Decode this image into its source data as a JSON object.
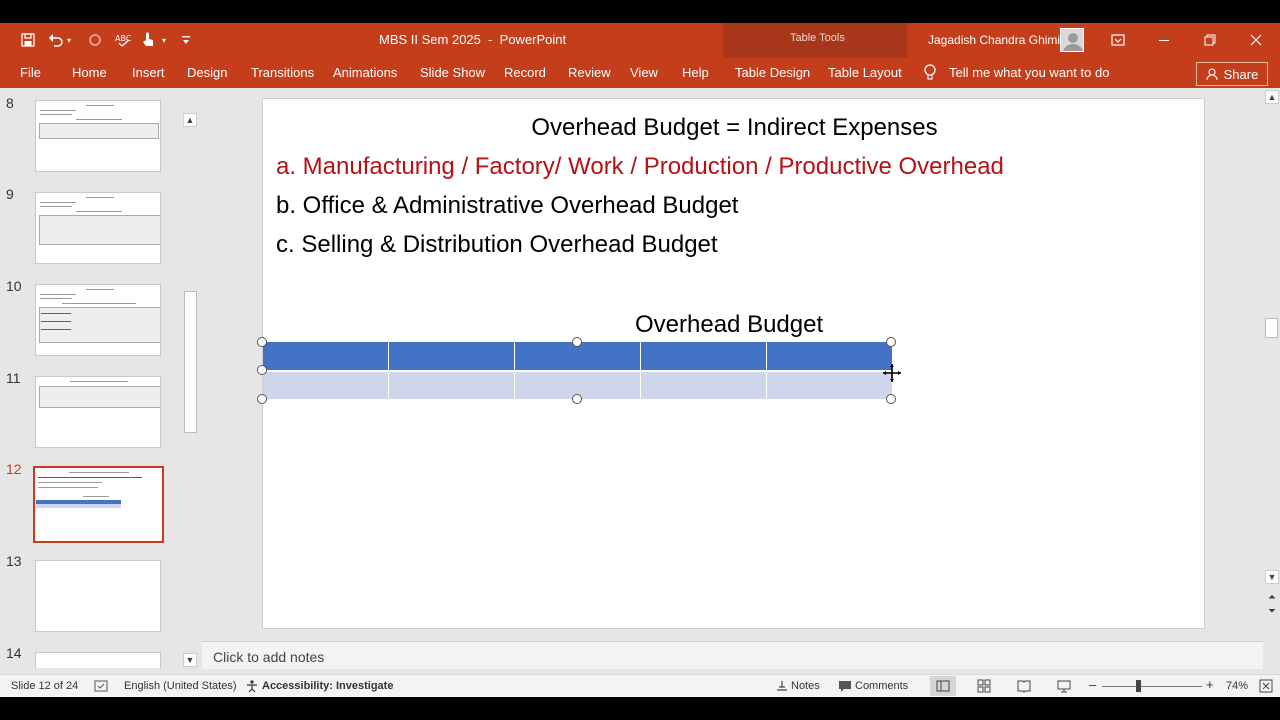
{
  "window": {
    "doc_title": "MBS II Sem 2025  -  PowerPoint",
    "context_tab_group": "Table Tools",
    "user_name": "Jagadish Chandra Ghimire"
  },
  "ribbon": {
    "tabs": [
      "File",
      "Home",
      "Insert",
      "Design",
      "Transitions",
      "Animations",
      "Slide Show",
      "Record",
      "Review",
      "View",
      "Help",
      "Table Design",
      "Table Layout"
    ],
    "tell_me": "Tell me what you want to do",
    "share": "Share"
  },
  "thumbnails": {
    "numbers": [
      "8",
      "9",
      "10",
      "11",
      "12",
      "13",
      "14"
    ],
    "selected": "12"
  },
  "slide": {
    "heading": "Overhead Budget = Indirect Expenses",
    "bullets": [
      "a. Manufacturing / Factory/ Work / Production / Productive Overhead",
      "b. Office & Administrative Overhead Budget",
      "c. Selling & Distribution Overhead Budget"
    ],
    "table_title": "Overhead Budget",
    "table": {
      "columns": 5,
      "rows": 2,
      "header_color": "#4472c4",
      "body_color": "#cfd5ea"
    }
  },
  "notes": {
    "placeholder": "Click to add notes"
  },
  "status": {
    "slide_info": "Slide 12 of 24",
    "language": "English (United States)",
    "accessibility": "Accessibility: Investigate",
    "notes_btn": "Notes",
    "comments_btn": "Comments",
    "zoom": "74%"
  },
  "colors": {
    "accent": "#c43e1c",
    "bullet_red": "#b31217"
  }
}
